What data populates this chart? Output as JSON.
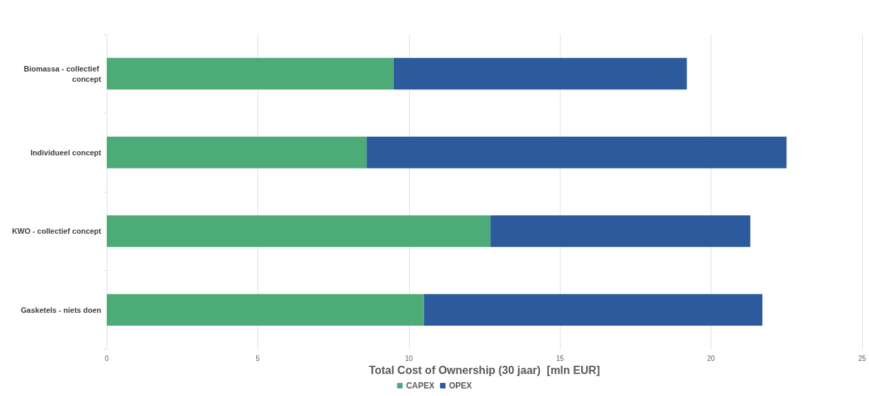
{
  "chart_data": {
    "type": "bar",
    "orientation": "horizontal",
    "stacked": true,
    "categories": [
      "Biomassa - collectief concept",
      "Individueel concept",
      "KWO - collectief concept",
      "Gasketels - niets doen"
    ],
    "series": [
      {
        "name": "CAPEX",
        "color": "#4cab76",
        "values": [
          9.5,
          8.6,
          12.7,
          10.5
        ]
      },
      {
        "name": "OPEX",
        "color": "#2c5a9c",
        "values": [
          9.7,
          13.9,
          8.6,
          11.2
        ]
      }
    ],
    "xlabel": "Total Cost of Ownership (30 jaar)  [mln EUR]",
    "xlim": [
      0,
      25
    ],
    "xticks": [
      0,
      5,
      10,
      15,
      20,
      25
    ],
    "grid": "x",
    "legend": "bottom"
  }
}
